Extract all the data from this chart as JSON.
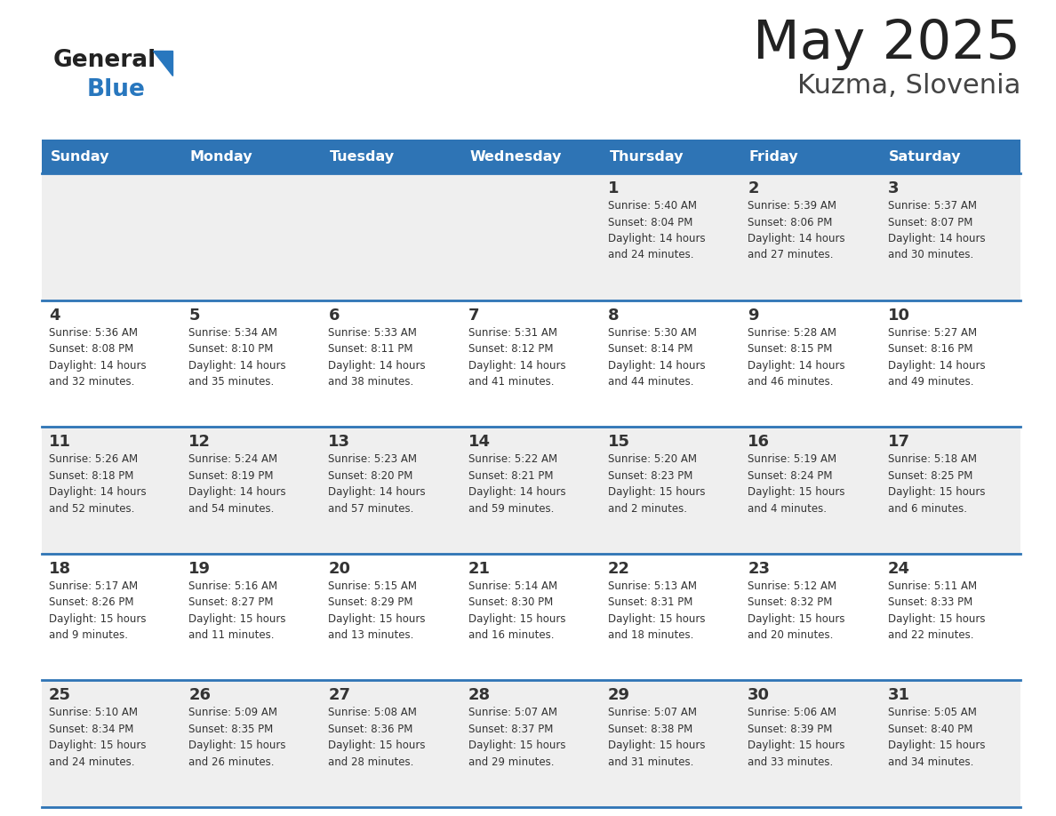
{
  "title": "May 2025",
  "subtitle": "Kuzma, Slovenia",
  "header_color": "#2E74B5",
  "header_text_color": "#FFFFFF",
  "day_names": [
    "Sunday",
    "Monday",
    "Tuesday",
    "Wednesday",
    "Thursday",
    "Friday",
    "Saturday"
  ],
  "title_color": "#222222",
  "subtitle_color": "#444444",
  "row_colors": [
    "#EFEFEF",
    "#FFFFFF"
  ],
  "line_color": "#2E74B5",
  "text_color": "#333333",
  "logo_general_color": "#222222",
  "logo_blue_color": "#2877BE",
  "calendar": [
    [
      {
        "day": "",
        "info": ""
      },
      {
        "day": "",
        "info": ""
      },
      {
        "day": "",
        "info": ""
      },
      {
        "day": "",
        "info": ""
      },
      {
        "day": "1",
        "info": "Sunrise: 5:40 AM\nSunset: 8:04 PM\nDaylight: 14 hours\nand 24 minutes."
      },
      {
        "day": "2",
        "info": "Sunrise: 5:39 AM\nSunset: 8:06 PM\nDaylight: 14 hours\nand 27 minutes."
      },
      {
        "day": "3",
        "info": "Sunrise: 5:37 AM\nSunset: 8:07 PM\nDaylight: 14 hours\nand 30 minutes."
      }
    ],
    [
      {
        "day": "4",
        "info": "Sunrise: 5:36 AM\nSunset: 8:08 PM\nDaylight: 14 hours\nand 32 minutes."
      },
      {
        "day": "5",
        "info": "Sunrise: 5:34 AM\nSunset: 8:10 PM\nDaylight: 14 hours\nand 35 minutes."
      },
      {
        "day": "6",
        "info": "Sunrise: 5:33 AM\nSunset: 8:11 PM\nDaylight: 14 hours\nand 38 minutes."
      },
      {
        "day": "7",
        "info": "Sunrise: 5:31 AM\nSunset: 8:12 PM\nDaylight: 14 hours\nand 41 minutes."
      },
      {
        "day": "8",
        "info": "Sunrise: 5:30 AM\nSunset: 8:14 PM\nDaylight: 14 hours\nand 44 minutes."
      },
      {
        "day": "9",
        "info": "Sunrise: 5:28 AM\nSunset: 8:15 PM\nDaylight: 14 hours\nand 46 minutes."
      },
      {
        "day": "10",
        "info": "Sunrise: 5:27 AM\nSunset: 8:16 PM\nDaylight: 14 hours\nand 49 minutes."
      }
    ],
    [
      {
        "day": "11",
        "info": "Sunrise: 5:26 AM\nSunset: 8:18 PM\nDaylight: 14 hours\nand 52 minutes."
      },
      {
        "day": "12",
        "info": "Sunrise: 5:24 AM\nSunset: 8:19 PM\nDaylight: 14 hours\nand 54 minutes."
      },
      {
        "day": "13",
        "info": "Sunrise: 5:23 AM\nSunset: 8:20 PM\nDaylight: 14 hours\nand 57 minutes."
      },
      {
        "day": "14",
        "info": "Sunrise: 5:22 AM\nSunset: 8:21 PM\nDaylight: 14 hours\nand 59 minutes."
      },
      {
        "day": "15",
        "info": "Sunrise: 5:20 AM\nSunset: 8:23 PM\nDaylight: 15 hours\nand 2 minutes."
      },
      {
        "day": "16",
        "info": "Sunrise: 5:19 AM\nSunset: 8:24 PM\nDaylight: 15 hours\nand 4 minutes."
      },
      {
        "day": "17",
        "info": "Sunrise: 5:18 AM\nSunset: 8:25 PM\nDaylight: 15 hours\nand 6 minutes."
      }
    ],
    [
      {
        "day": "18",
        "info": "Sunrise: 5:17 AM\nSunset: 8:26 PM\nDaylight: 15 hours\nand 9 minutes."
      },
      {
        "day": "19",
        "info": "Sunrise: 5:16 AM\nSunset: 8:27 PM\nDaylight: 15 hours\nand 11 minutes."
      },
      {
        "day": "20",
        "info": "Sunrise: 5:15 AM\nSunset: 8:29 PM\nDaylight: 15 hours\nand 13 minutes."
      },
      {
        "day": "21",
        "info": "Sunrise: 5:14 AM\nSunset: 8:30 PM\nDaylight: 15 hours\nand 16 minutes."
      },
      {
        "day": "22",
        "info": "Sunrise: 5:13 AM\nSunset: 8:31 PM\nDaylight: 15 hours\nand 18 minutes."
      },
      {
        "day": "23",
        "info": "Sunrise: 5:12 AM\nSunset: 8:32 PM\nDaylight: 15 hours\nand 20 minutes."
      },
      {
        "day": "24",
        "info": "Sunrise: 5:11 AM\nSunset: 8:33 PM\nDaylight: 15 hours\nand 22 minutes."
      }
    ],
    [
      {
        "day": "25",
        "info": "Sunrise: 5:10 AM\nSunset: 8:34 PM\nDaylight: 15 hours\nand 24 minutes."
      },
      {
        "day": "26",
        "info": "Sunrise: 5:09 AM\nSunset: 8:35 PM\nDaylight: 15 hours\nand 26 minutes."
      },
      {
        "day": "27",
        "info": "Sunrise: 5:08 AM\nSunset: 8:36 PM\nDaylight: 15 hours\nand 28 minutes."
      },
      {
        "day": "28",
        "info": "Sunrise: 5:07 AM\nSunset: 8:37 PM\nDaylight: 15 hours\nand 29 minutes."
      },
      {
        "day": "29",
        "info": "Sunrise: 5:07 AM\nSunset: 8:38 PM\nDaylight: 15 hours\nand 31 minutes."
      },
      {
        "day": "30",
        "info": "Sunrise: 5:06 AM\nSunset: 8:39 PM\nDaylight: 15 hours\nand 33 minutes."
      },
      {
        "day": "31",
        "info": "Sunrise: 5:05 AM\nSunset: 8:40 PM\nDaylight: 15 hours\nand 34 minutes."
      }
    ]
  ]
}
